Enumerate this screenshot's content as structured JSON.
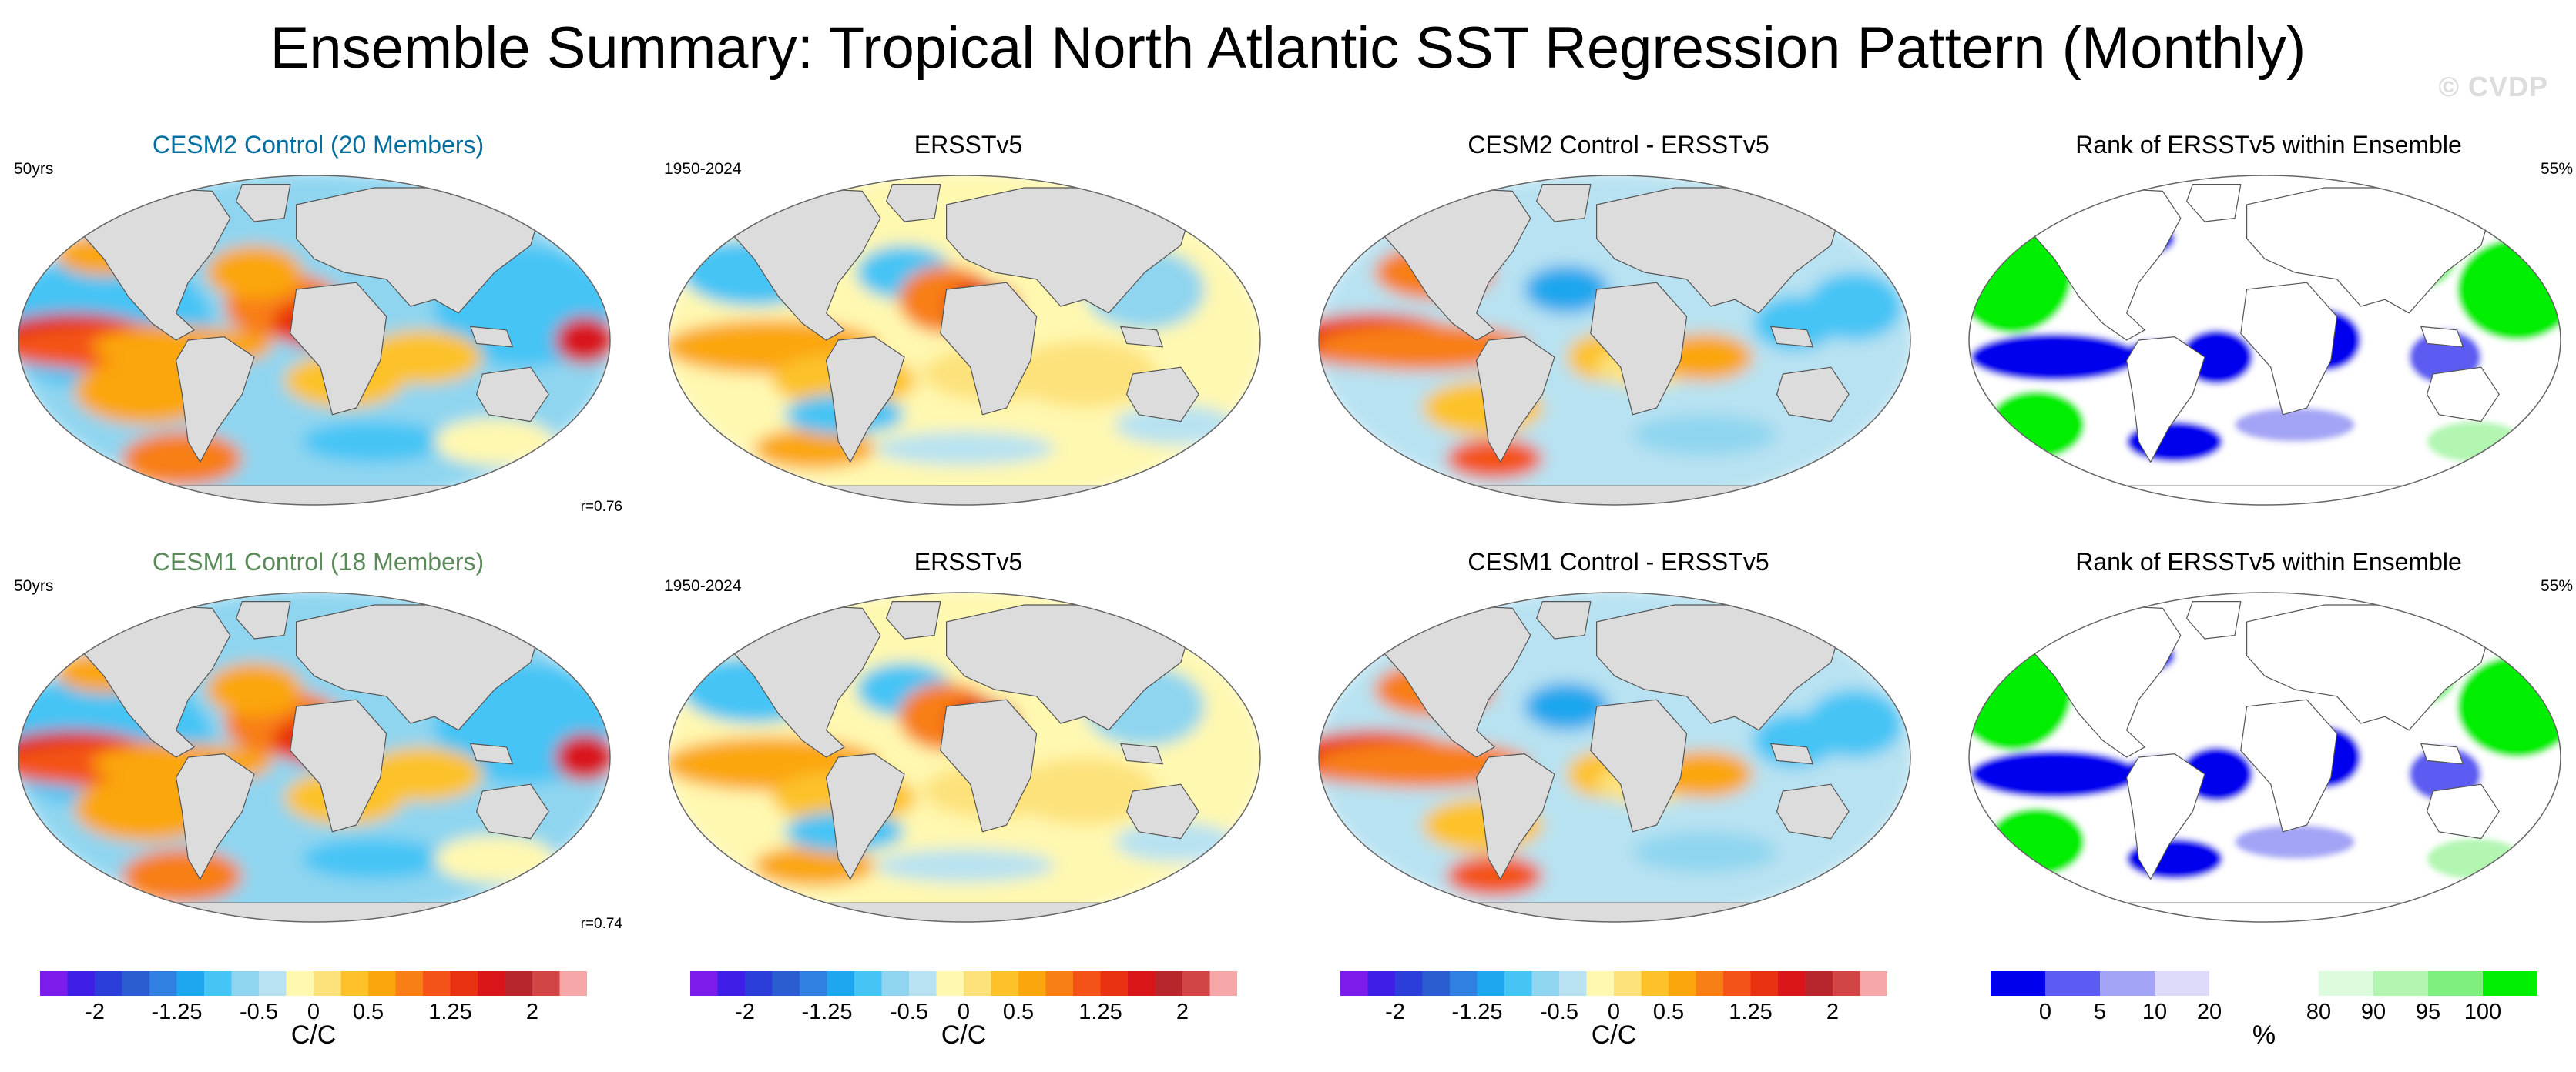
{
  "title": "Ensemble Summary: Tropical North Atlantic SST Regression Pattern (Monthly)",
  "watermark": "© CVDP",
  "colors": {
    "diverging": [
      "#7d1bea",
      "#3f1ee8",
      "#2b3ed9",
      "#2a5ed0",
      "#2f80e0",
      "#1ea6ee",
      "#45c4f5",
      "#8fd5f0",
      "#b8e2f1",
      "#fff8b0",
      "#fde27b",
      "#fdc22a",
      "#fba60d",
      "#f87e16",
      "#f45216",
      "#e83110",
      "#d9151a",
      "#b8262d",
      "#d14545",
      "#f6a8a8"
    ],
    "rank": [
      "#0000ee",
      "#5c5cf2",
      "#a4a4f6",
      "#dcdcfa",
      "#ffffff",
      "#ffffff",
      "#ddfbdd",
      "#b2f6b2",
      "#7ff07f",
      "#00ee00"
    ],
    "land": "#dcdcdc"
  },
  "rows": [
    {
      "panels": [
        {
          "title": "CESM2 Control (20 Members)",
          "title_color": "#006fa0",
          "corner_left": "50yrs",
          "corner_right": "",
          "corr": "r=0.76",
          "kind": "model"
        },
        {
          "title": "ERSSTv5",
          "title_color": "#000000",
          "corner_left": "1950-2024",
          "corner_right": "",
          "corr": "",
          "kind": "obs"
        },
        {
          "title": "CESM2 Control - ERSSTv5",
          "title_color": "#000000",
          "corner_left": "",
          "corner_right": "",
          "corr": "",
          "kind": "diff"
        },
        {
          "title": "Rank of ERSSTv5 within Ensemble",
          "title_color": "#000000",
          "corner_left": "",
          "corner_right": "55%",
          "corr": "",
          "kind": "rank"
        }
      ]
    },
    {
      "panels": [
        {
          "title": "CESM1 Control (18 Members)",
          "title_color": "#5a8a5a",
          "corner_left": "50yrs",
          "corner_right": "",
          "corr": "r=0.74",
          "kind": "model"
        },
        {
          "title": "ERSSTv5",
          "title_color": "#000000",
          "corner_left": "1950-2024",
          "corner_right": "",
          "corr": "",
          "kind": "obs"
        },
        {
          "title": "CESM1 Control - ERSSTv5",
          "title_color": "#000000",
          "corner_left": "",
          "corner_right": "",
          "corr": "",
          "kind": "diff"
        },
        {
          "title": "Rank of ERSSTv5 within Ensemble",
          "title_color": "#000000",
          "corner_left": "",
          "corner_right": "55%",
          "corr": "",
          "kind": "rank"
        }
      ]
    }
  ],
  "chart_data": [
    {
      "type": "heatmap",
      "title": "Tropical North Atlantic SST regression pattern colorbar",
      "units": "C/C",
      "levels": [
        -2.25,
        -2,
        -1.75,
        -1.5,
        -1.25,
        -1,
        -0.75,
        -0.5,
        -0.25,
        0,
        0.25,
        0.5,
        0.75,
        1,
        1.25,
        1.5,
        1.75,
        2,
        2.25
      ],
      "tick_labels": [
        "-2",
        "-1.25",
        "-0.5",
        "0",
        "0.5",
        "1.25",
        "2"
      ],
      "tick_values": [
        -2,
        -1.25,
        -0.5,
        0,
        0.5,
        1.25,
        2
      ],
      "range": [
        -2.5,
        2.5
      ]
    },
    {
      "type": "heatmap",
      "title": "Rank of ERSSTv5 within Ensemble colorbar",
      "units": "%",
      "levels": [
        0,
        5,
        10,
        20,
        50,
        80,
        90,
        95,
        100
      ],
      "tick_labels": [
        "0",
        "5",
        "10",
        "20",
        "80",
        "90",
        "95",
        "100"
      ],
      "tick_values": [
        0,
        5,
        10,
        20,
        80,
        90,
        95,
        100
      ],
      "n_bins": 10
    }
  ]
}
